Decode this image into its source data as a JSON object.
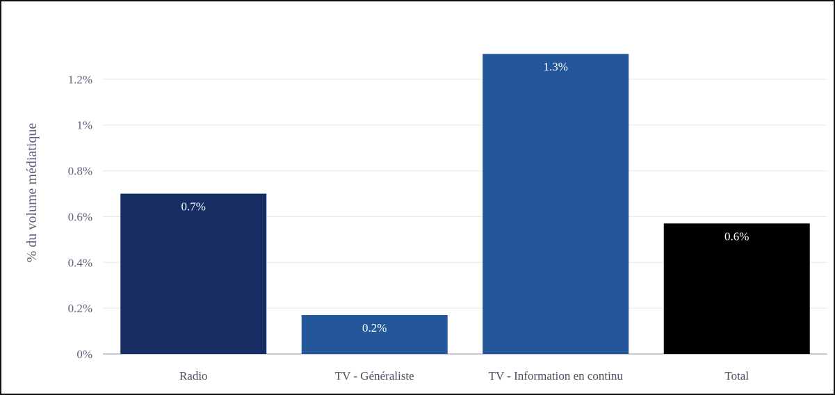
{
  "chart_data": {
    "type": "bar",
    "title": "",
    "xlabel": "",
    "ylabel": "% du volume médiatique",
    "categories": [
      "Radio",
      "TV - Généraliste",
      "TV - Information en continu",
      "Total"
    ],
    "values": [
      0.7,
      0.17,
      1.31,
      0.57
    ],
    "data_labels": [
      "0.7%",
      "0.2%",
      "1.3%",
      "0.6%"
    ],
    "bar_colors": [
      "#162e63",
      "#24569a",
      "#24569a",
      "#000000"
    ],
    "ylim": [
      0,
      1.4
    ],
    "yticks": [
      0,
      0.2,
      0.4,
      0.6,
      0.8,
      1.0,
      1.2
    ],
    "ytick_labels": [
      "0%",
      "0.2%",
      "0.4%",
      "0.6%",
      "0.8%",
      "1%",
      "1.2%"
    ],
    "grid": true,
    "legend": "none"
  }
}
